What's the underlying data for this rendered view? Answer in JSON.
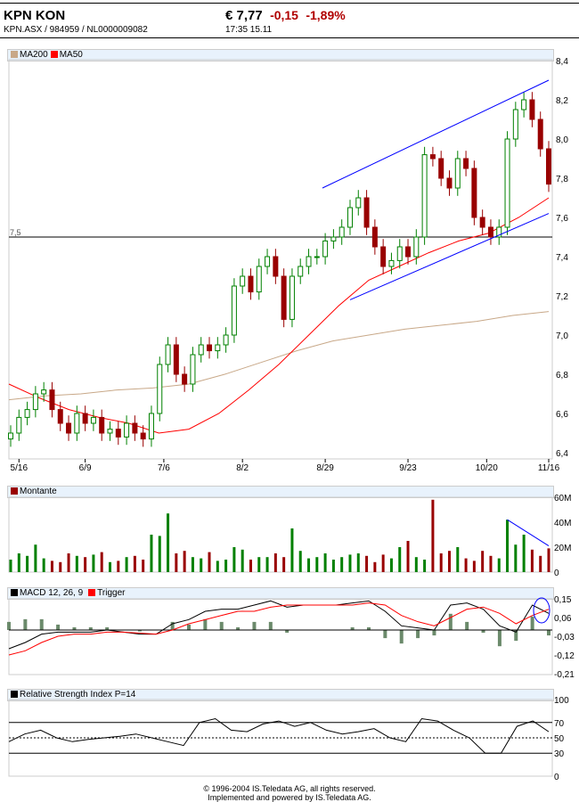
{
  "header": {
    "title": "KPN KON",
    "symbols": "KPN.ASX  /  984959  /  NL0000009082",
    "price": "€ 7,77",
    "change": "-0,15",
    "change_pct": "-1,89%",
    "time": "17:35   15.11"
  },
  "legends": {
    "ma200": "MA200",
    "ma50": "MA50",
    "volume": "Montante",
    "macd": "MACD 12, 26, 9",
    "trigger": "Trigger",
    "rsi": "Relative Strength Index P=14"
  },
  "colors": {
    "up": "#008000",
    "down": "#990000",
    "ma50": "#ff0000",
    "ma200": "#c8a888",
    "trend": "#0000ff",
    "macd": "#000000",
    "trigger": "#ff0000",
    "hist": "#6b8a6b"
  },
  "footer": {
    "line1": "© 1996-2004 IS.Teledata AG, all rights reserved.",
    "line2": "Implemented and powered by IS.Teledata AG."
  },
  "chart_data": [
    {
      "type": "candlestick",
      "x_ticks": [
        "5/16",
        "6/9",
        "7/6",
        "8/2",
        "8/29",
        "9/23",
        "10/20",
        "11/16"
      ],
      "ylim": [
        6.4,
        8.4
      ],
      "y_ticks": [
        "6,4",
        "6,6",
        "6,8",
        "7,0",
        "7,2",
        "7,4",
        "7,6",
        "7,8",
        "8,0",
        "8,2",
        "8,4"
      ],
      "reference_line": {
        "value": 7.5,
        "label": "7,5"
      },
      "close": [
        6.5,
        6.58,
        6.62,
        6.7,
        6.72,
        6.62,
        6.55,
        6.5,
        6.6,
        6.55,
        6.58,
        6.5,
        6.52,
        6.48,
        6.55,
        6.5,
        6.47,
        6.6,
        6.85,
        6.95,
        6.8,
        6.75,
        6.9,
        6.95,
        6.92,
        6.95,
        7.0,
        7.25,
        7.3,
        7.22,
        7.35,
        7.4,
        7.3,
        7.08,
        7.3,
        7.35,
        7.4,
        7.4,
        7.48,
        7.5,
        7.55,
        7.65,
        7.7,
        7.55,
        7.45,
        7.35,
        7.38,
        7.45,
        7.4,
        7.5,
        7.92,
        7.9,
        7.8,
        7.75,
        7.9,
        7.85,
        7.6,
        7.55,
        7.5,
        7.55,
        8.0,
        8.15,
        8.2,
        8.1,
        7.95,
        7.77
      ],
      "ma50": [
        6.75,
        6.68,
        6.62,
        6.58,
        6.55,
        6.5,
        6.52,
        6.6,
        6.72,
        6.85,
        7.0,
        7.15,
        7.28,
        7.35,
        7.42,
        7.48,
        7.52,
        7.6,
        7.7
      ],
      "ma200": [
        6.67,
        6.69,
        6.7,
        6.72,
        6.73,
        6.75,
        6.8,
        6.86,
        6.92,
        6.97,
        7.0,
        7.03,
        7.05,
        7.07,
        7.1,
        7.12
      ],
      "trend_upper": [
        7.75,
        8.3
      ],
      "trend_lower": [
        7.18,
        7.62
      ]
    },
    {
      "type": "bar",
      "name": "Montante",
      "ylim": [
        0,
        60
      ],
      "y_ticks": [
        "0",
        "20M",
        "40M",
        "60M"
      ],
      "values": [
        10,
        15,
        13,
        22,
        11,
        9,
        8,
        15,
        13,
        12,
        14,
        16,
        8,
        9,
        12,
        13,
        10,
        30,
        29,
        47,
        15,
        17,
        12,
        11,
        16,
        9,
        10,
        20,
        18,
        10,
        12,
        12,
        15,
        12,
        35,
        17,
        11,
        12,
        15,
        10,
        12,
        14,
        15,
        13,
        8,
        14,
        11,
        20,
        25,
        12,
        10,
        58,
        15,
        17,
        20,
        11,
        9,
        17,
        13,
        11,
        42,
        22,
        30,
        18,
        13,
        19
      ],
      "trend": [
        42,
        21
      ]
    },
    {
      "type": "line",
      "ylim": [
        -0.21,
        0.15
      ],
      "y_ticks": [
        "0,15",
        "0,06",
        "-0,03",
        "-0,12",
        "-0,21"
      ],
      "series": [
        {
          "name": "MACD 12, 26, 9",
          "values": [
            -0.09,
            -0.06,
            -0.02,
            -0.01,
            -0.01,
            -0.01,
            0,
            -0.01,
            -0.02,
            -0.02,
            0.03,
            0.05,
            0.09,
            0.1,
            0.1,
            0.12,
            0.14,
            0.11,
            0.12,
            0.12,
            0.12,
            0.13,
            0.14,
            0.09,
            0.02,
            0.01,
            0.0,
            0.12,
            0.13,
            0.1,
            0.02,
            -0.01,
            0.12,
            0.08
          ]
        },
        {
          "name": "Trigger",
          "values": [
            -0.12,
            -0.1,
            -0.06,
            -0.03,
            -0.02,
            -0.02,
            -0.01,
            -0.01,
            -0.015,
            -0.02,
            0.0,
            0.03,
            0.05,
            0.07,
            0.09,
            0.09,
            0.11,
            0.12,
            0.12,
            0.12,
            0.12,
            0.12,
            0.13,
            0.12,
            0.07,
            0.04,
            0.02,
            0.06,
            0.1,
            0.11,
            0.08,
            0.03,
            0.07,
            0.1
          ]
        }
      ]
    },
    {
      "type": "line",
      "name": "Relative Strength Index P=14",
      "ylim": [
        0,
        100
      ],
      "y_ticks": [
        "0",
        "30",
        "50",
        "70",
        "100"
      ],
      "values": [
        45,
        55,
        60,
        50,
        45,
        48,
        50,
        52,
        55,
        50,
        45,
        40,
        70,
        75,
        60,
        58,
        68,
        72,
        65,
        70,
        60,
        55,
        58,
        62,
        50,
        45,
        75,
        72,
        60,
        50,
        30,
        30,
        65,
        72,
        58
      ]
    }
  ]
}
